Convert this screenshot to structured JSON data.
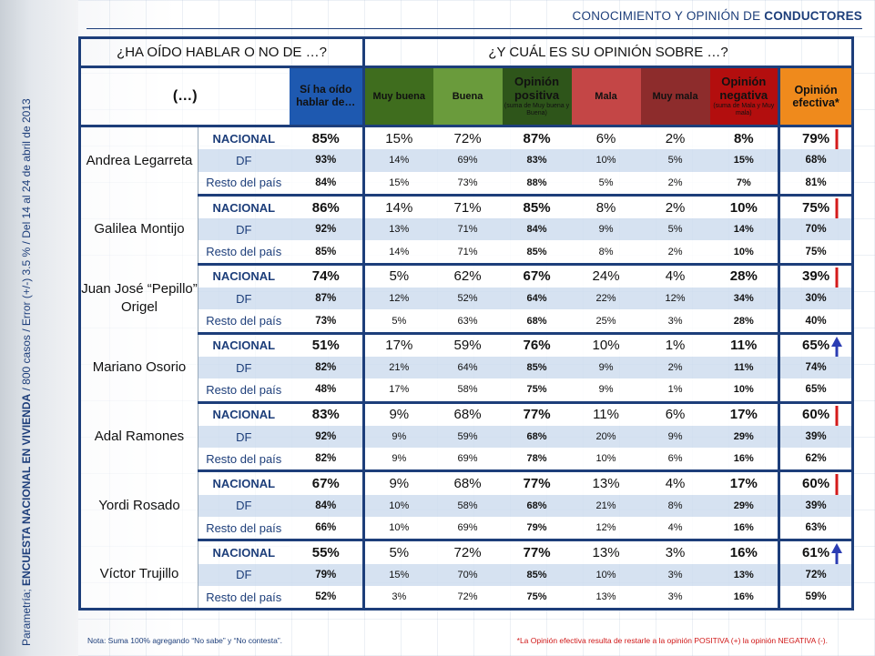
{
  "title_prefix": "CONOCIMIENTO Y OPINIÓN DE ",
  "title_bold": "CONDUCTORES",
  "side_text_normal": "Parametría; ",
  "side_text_bold": "ENCUESTA NACIONAL EN VIVIENDA",
  "side_text_rest": " / 800 casos / Error (+/-) 3.5 % / Del 14 al 24  de abril de 2013",
  "headers": {
    "left": "¿HA OÍDO HABLAR O NO DE …?",
    "right": "¿Y CUÁL ES SU OPINIÓN SOBRE …?",
    "paren": "(…)",
    "heard": "Sí ha oído hablar de…",
    "muy_buena": "Muy buena",
    "buena": "Buena",
    "pos_title": "Opinión positiva",
    "pos_sub": "(suma de Muy buena y Buena)",
    "mala": "Mala",
    "muy_mala": "Muy mala",
    "neg_title": "Opinión negativa",
    "neg_sub": "(suma de Mala y Muy mala)",
    "efectiva": "Opinión efectiva*"
  },
  "levels": [
    "NACIONAL",
    "DF",
    "Resto del país"
  ],
  "colors": {
    "arrow_down": "#d41b1b",
    "arrow_up": "#2b3db3"
  },
  "persons": [
    {
      "name": "Andrea Legarreta",
      "arrow": "down",
      "rows": [
        [
          "85%",
          "15%",
          "72%",
          "87%",
          "6%",
          "2%",
          "8%",
          "79%"
        ],
        [
          "93%",
          "14%",
          "69%",
          "83%",
          "10%",
          "5%",
          "15%",
          "68%"
        ],
        [
          "84%",
          "15%",
          "73%",
          "88%",
          "5%",
          "2%",
          "7%",
          "81%"
        ]
      ]
    },
    {
      "name": "Galilea Montijo",
      "arrow": "down",
      "rows": [
        [
          "86%",
          "14%",
          "71%",
          "85%",
          "8%",
          "2%",
          "10%",
          "75%"
        ],
        [
          "92%",
          "13%",
          "71%",
          "84%",
          "9%",
          "5%",
          "14%",
          "70%"
        ],
        [
          "85%",
          "14%",
          "71%",
          "85%",
          "8%",
          "2%",
          "10%",
          "75%"
        ]
      ]
    },
    {
      "name": "Juan José “Pepillo” Origel",
      "arrow": "down",
      "rows": [
        [
          "74%",
          "5%",
          "62%",
          "67%",
          "24%",
          "4%",
          "28%",
          "39%"
        ],
        [
          "87%",
          "12%",
          "52%",
          "64%",
          "22%",
          "12%",
          "34%",
          "30%"
        ],
        [
          "73%",
          "5%",
          "63%",
          "68%",
          "25%",
          "3%",
          "28%",
          "40%"
        ]
      ]
    },
    {
      "name": "Mariano Osorio",
      "arrow": "up",
      "rows": [
        [
          "51%",
          "17%",
          "59%",
          "76%",
          "10%",
          "1%",
          "11%",
          "65%"
        ],
        [
          "82%",
          "21%",
          "64%",
          "85%",
          "9%",
          "2%",
          "11%",
          "74%"
        ],
        [
          "48%",
          "17%",
          "58%",
          "75%",
          "9%",
          "1%",
          "10%",
          "65%"
        ]
      ]
    },
    {
      "name": "Adal Ramones",
      "arrow": "down",
      "rows": [
        [
          "83%",
          "9%",
          "68%",
          "77%",
          "11%",
          "6%",
          "17%",
          "60%"
        ],
        [
          "92%",
          "9%",
          "59%",
          "68%",
          "20%",
          "9%",
          "29%",
          "39%"
        ],
        [
          "82%",
          "9%",
          "69%",
          "78%",
          "10%",
          "6%",
          "16%",
          "62%"
        ]
      ]
    },
    {
      "name": "Yordi Rosado",
      "arrow": "down",
      "rows": [
        [
          "67%",
          "9%",
          "68%",
          "77%",
          "13%",
          "4%",
          "17%",
          "60%"
        ],
        [
          "84%",
          "10%",
          "58%",
          "68%",
          "21%",
          "8%",
          "29%",
          "39%"
        ],
        [
          "66%",
          "10%",
          "69%",
          "79%",
          "12%",
          "4%",
          "16%",
          "63%"
        ]
      ]
    },
    {
      "name": "Víctor Trujillo",
      "arrow": "up",
      "rows": [
        [
          "55%",
          "5%",
          "72%",
          "77%",
          "13%",
          "3%",
          "16%",
          "61%"
        ],
        [
          "79%",
          "15%",
          "70%",
          "85%",
          "10%",
          "3%",
          "13%",
          "72%"
        ],
        [
          "52%",
          "3%",
          "72%",
          "75%",
          "13%",
          "3%",
          "16%",
          "59%"
        ]
      ]
    }
  ],
  "note_left": "Nota: Suma 100% agregando “No sabe” y “No contesta”.",
  "note_right": "*La Opinión efectiva resulta de restarle a la opinión POSITIVA (+) la opinión NEGATIVA (-)."
}
